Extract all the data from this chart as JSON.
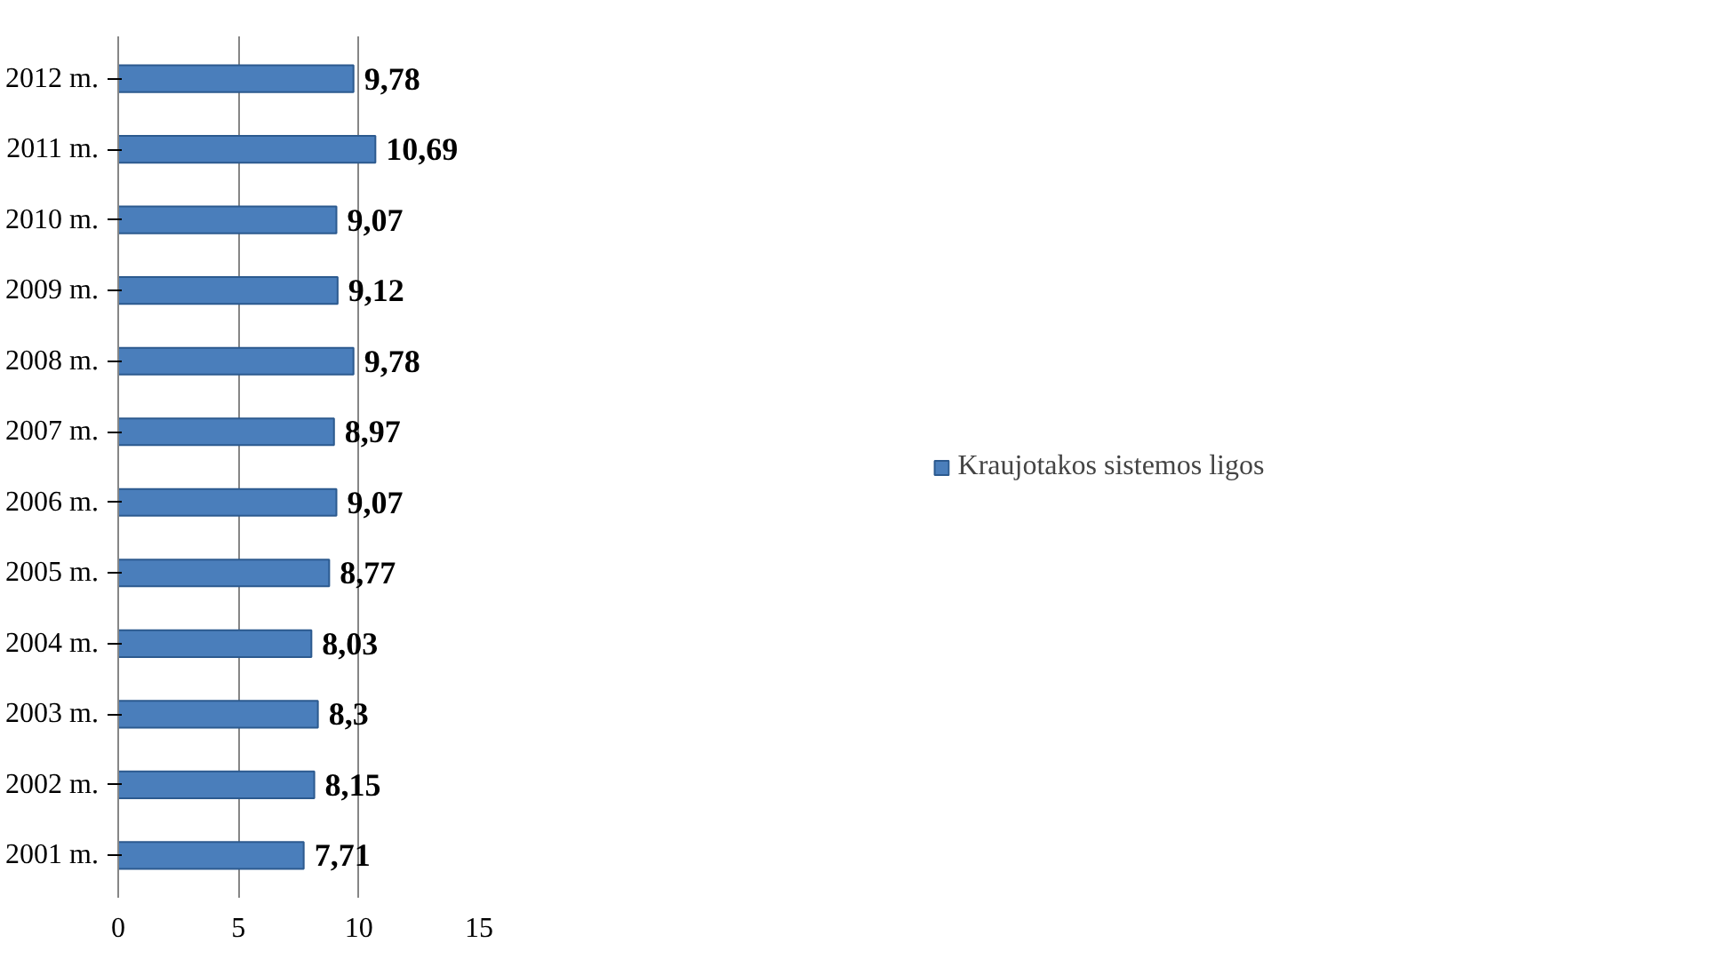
{
  "chart_data": {
    "type": "bar",
    "orientation": "horizontal",
    "categories": [
      "2012 m.",
      "2011 m.",
      "2010 m.",
      "2009 m.",
      "2008 m.",
      "2007 m.",
      "2006 m.",
      "2005 m.",
      "2004 m.",
      "2003 m.",
      "2002 m.",
      "2001 m."
    ],
    "series": [
      {
        "name": "Kraujotakos sistemos ligos",
        "color": "#4a7ebb",
        "values": [
          9.78,
          10.69,
          9.07,
          9.12,
          9.78,
          8.97,
          9.07,
          8.77,
          8.03,
          8.3,
          8.15,
          7.71
        ],
        "value_labels": [
          "9,78",
          "10,69",
          "9,07",
          "9,12",
          "9,78",
          "8,97",
          "9,07",
          "8,77",
          "8,03",
          "8,3",
          "8,15",
          "7,71"
        ]
      }
    ],
    "xlim": [
      0,
      15
    ],
    "xticks": [
      0,
      5,
      10,
      15
    ],
    "grid": "x",
    "legend": "right"
  }
}
